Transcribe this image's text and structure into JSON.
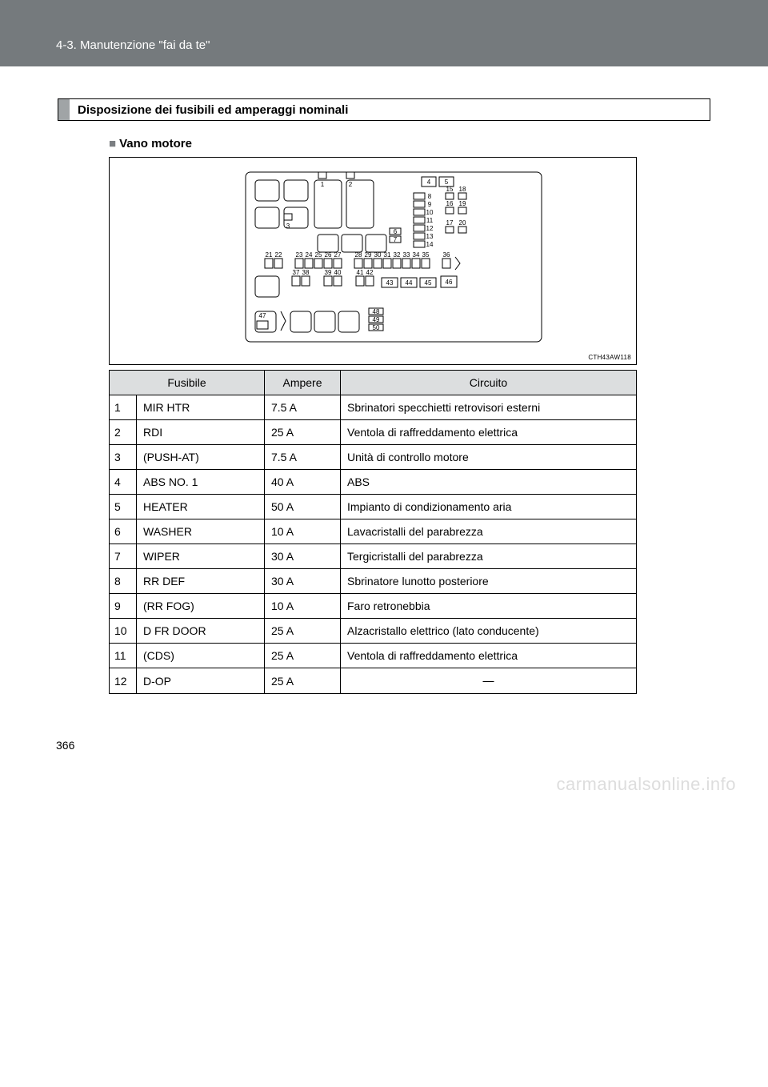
{
  "header": {
    "breadcrumb": "4-3. Manutenzione \"fai da te\""
  },
  "section": {
    "title": "Disposizione dei fusibili ed amperaggi nominali",
    "subsection": "Vano motore"
  },
  "diagram": {
    "code": "CTH43AW118",
    "bg": "#ffffff",
    "stroke": "#000000",
    "nums": [
      "1",
      "2",
      "3",
      "4",
      "5",
      "6",
      "7",
      "8",
      "9",
      "10",
      "11",
      "12",
      "13",
      "14",
      "15",
      "16",
      "17",
      "18",
      "19",
      "20",
      "21",
      "22",
      "23",
      "24",
      "25",
      "26",
      "27",
      "28",
      "29",
      "30",
      "31",
      "32",
      "33",
      "34",
      "35",
      "36",
      "37",
      "38",
      "39",
      "40",
      "41",
      "42",
      "43",
      "44",
      "45",
      "46",
      "47",
      "48",
      "49",
      "50"
    ]
  },
  "table": {
    "headers": {
      "fuse": "Fusibile",
      "amp": "Ampere",
      "circuit": "Circuito"
    },
    "header_bg": "#dcdedf",
    "rows": [
      {
        "n": "1",
        "name": "MIR HTR",
        "amp": "7.5 A",
        "circuit": "Sbrinatori specchietti retrovisori esterni"
      },
      {
        "n": "2",
        "name": "RDI",
        "amp": "25 A",
        "circuit": "Ventola di raffreddamento elettrica"
      },
      {
        "n": "3",
        "name": "(PUSH-AT)",
        "amp": "7.5 A",
        "circuit": "Unità di controllo motore"
      },
      {
        "n": "4",
        "name": "ABS NO. 1",
        "amp": "40 A",
        "circuit": "ABS"
      },
      {
        "n": "5",
        "name": "HEATER",
        "amp": "50 A",
        "circuit": "Impianto di condizionamento aria"
      },
      {
        "n": "6",
        "name": "WASHER",
        "amp": "10 A",
        "circuit": "Lavacristalli del parabrezza"
      },
      {
        "n": "7",
        "name": "WIPER",
        "amp": "30 A",
        "circuit": "Tergicristalli del parabrezza"
      },
      {
        "n": "8",
        "name": "RR DEF",
        "amp": "30 A",
        "circuit": "Sbrinatore lunotto posteriore"
      },
      {
        "n": "9",
        "name": "(RR FOG)",
        "amp": "10 A",
        "circuit": "Faro retronebbia"
      },
      {
        "n": "10",
        "name": "D FR DOOR",
        "amp": "25 A",
        "circuit": "Alzacristallo elettrico (lato conducente)"
      },
      {
        "n": "11",
        "name": "(CDS)",
        "amp": "25 A",
        "circuit": "Ventola di raffreddamento elettrica"
      },
      {
        "n": "12",
        "name": "D-OP",
        "amp": "25 A",
        "circuit": "⎯⎯"
      }
    ]
  },
  "page_number": "366",
  "watermark": "carmanualsonline.info"
}
